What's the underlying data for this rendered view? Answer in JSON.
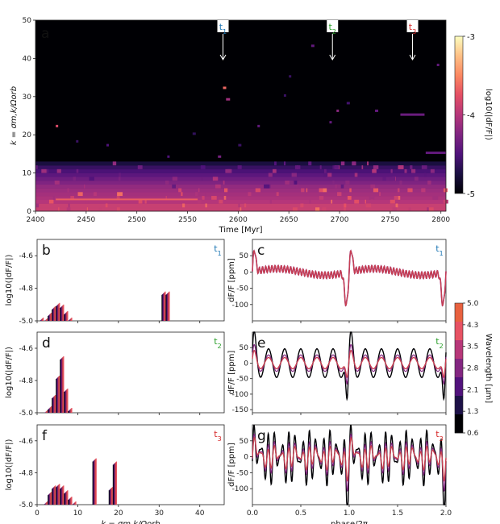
{
  "chart_data": [
    {
      "panel": "a",
      "type": "heatmap",
      "xlabel": "Time [Myr]",
      "ylabel": "k = σm,k/Ωorb",
      "xlim": [
        2400,
        2805
      ],
      "ylim": [
        0,
        50
      ],
      "xticks": [
        "2400",
        "2450",
        "2500",
        "2550",
        "2600",
        "2650",
        "2700",
        "2750",
        "2800"
      ],
      "yticks": [
        "0",
        "10",
        "20",
        "30",
        "40",
        "50"
      ],
      "colorbar": {
        "label": "log10(|dF/F|)",
        "range": [
          -5,
          -3
        ],
        "ticks": [
          "-3",
          "-4",
          "-5"
        ]
      },
      "markers": [
        {
          "label": "t1",
          "sub": "1",
          "base": "t",
          "time": 2585,
          "color": "#1f77b4"
        },
        {
          "label": "t2",
          "sub": "2",
          "base": "t",
          "time": 2693,
          "color": "#2ca02c"
        },
        {
          "label": "t3",
          "sub": "3",
          "base": "t",
          "time": 2772,
          "color": "#d62728"
        }
      ]
    },
    {
      "panel": "b",
      "type": "bar",
      "ylabel": "log10(|dF/F|)",
      "marker": "t1",
      "xlim": [
        0,
        46
      ],
      "ylim": [
        -5.0,
        -4.5
      ],
      "yticks": [
        "-4.6",
        "-4.8",
        "-5.0"
      ],
      "xticks": [
        "0",
        "10",
        "20",
        "30",
        "40"
      ],
      "peaks": [
        {
          "k": 1,
          "v": -4.99
        },
        {
          "k": 2,
          "v": -4.995
        },
        {
          "k": 3,
          "v": -4.96
        },
        {
          "k": 4,
          "v": -4.92
        },
        {
          "k": 5,
          "v": -4.9
        },
        {
          "k": 6,
          "v": -4.91
        },
        {
          "k": 7,
          "v": -4.95
        },
        {
          "k": 8,
          "v": -4.99
        },
        {
          "k": 31,
          "v": -4.83
        },
        {
          "k": 32,
          "v": -4.83
        }
      ]
    },
    {
      "panel": "d",
      "type": "bar",
      "ylabel": "log10(|dF/F|)",
      "marker": "t2",
      "xlim": [
        0,
        46
      ],
      "ylim": [
        -5.0,
        -4.5
      ],
      "yticks": [
        "-4.6",
        "-4.8",
        "-5.0"
      ],
      "xticks": [
        "0",
        "10",
        "20",
        "30",
        "40"
      ],
      "peaks": [
        {
          "k": 2,
          "v": -4.995
        },
        {
          "k": 3,
          "v": -4.97
        },
        {
          "k": 4,
          "v": -4.9
        },
        {
          "k": 5,
          "v": -4.78
        },
        {
          "k": 6,
          "v": -4.66
        },
        {
          "k": 7,
          "v": -4.86
        },
        {
          "k": 8,
          "v": -4.98
        }
      ]
    },
    {
      "panel": "f",
      "type": "bar",
      "ylabel": "log10(|dF/F|)",
      "marker": "t3",
      "xlim": [
        0,
        46
      ],
      "ylim": [
        -5.0,
        -4.5
      ],
      "yticks": [
        "-4.6",
        "-4.8",
        "-5.0"
      ],
      "xticks": [
        "0",
        "10",
        "20",
        "30",
        "40"
      ],
      "xlabel": "k = σm,k/Ωorb",
      "peaks": [
        {
          "k": 2,
          "v": -4.99
        },
        {
          "k": 3,
          "v": -4.93
        },
        {
          "k": 4,
          "v": -4.89
        },
        {
          "k": 5,
          "v": -4.88
        },
        {
          "k": 6,
          "v": -4.89
        },
        {
          "k": 7,
          "v": -4.92
        },
        {
          "k": 8,
          "v": -4.96
        },
        {
          "k": 9,
          "v": -4.99
        },
        {
          "k": 14,
          "v": -4.72
        },
        {
          "k": 18,
          "v": -4.9
        },
        {
          "k": 19,
          "v": -4.74
        }
      ]
    },
    {
      "panel": "c",
      "type": "line",
      "ylabel": "dF/F [ppm]",
      "marker": "t1",
      "xlim": [
        0,
        2
      ],
      "ylim": [
        -150,
        100
      ],
      "yticks": [
        "50",
        "0",
        "-50",
        "-100"
      ],
      "xticks": [
        "0.0",
        "0.5",
        "1.0",
        "1.5",
        "2.0"
      ],
      "model": {
        "kind": "c"
      }
    },
    {
      "panel": "e",
      "type": "line",
      "ylabel": "dF/F [ppm]",
      "marker": "t2",
      "xlim": [
        0,
        2
      ],
      "ylim": [
        -160,
        100
      ],
      "yticks": [
        "50",
        "0",
        "-50",
        "-100",
        "-150"
      ],
      "xticks": [
        "0.0",
        "0.5",
        "1.0",
        "1.5",
        "2.0"
      ],
      "model": {
        "kind": "e"
      }
    },
    {
      "panel": "g",
      "type": "line",
      "ylabel": "dF/F [ppm]",
      "marker": "t3",
      "xlim": [
        0,
        2
      ],
      "ylim": [
        -150,
        100
      ],
      "yticks": [
        "50",
        "0",
        "-50",
        "-100"
      ],
      "xticks": [
        "0.0",
        "0.5",
        "1.0",
        "1.5",
        "2.0"
      ],
      "xlabel": "phase/2π",
      "model": {
        "kind": "g"
      }
    }
  ],
  "wavelength_legend": {
    "label": "Wavelength [μm]",
    "ticks": [
      "5.0",
      "4.3",
      "3.5",
      "2.8",
      "2.1",
      "1.3",
      "0.6"
    ],
    "colors": [
      "#000004",
      "#1d1147",
      "#51127c",
      "#832681",
      "#b73779",
      "#e75263",
      "#f4695c"
    ]
  }
}
